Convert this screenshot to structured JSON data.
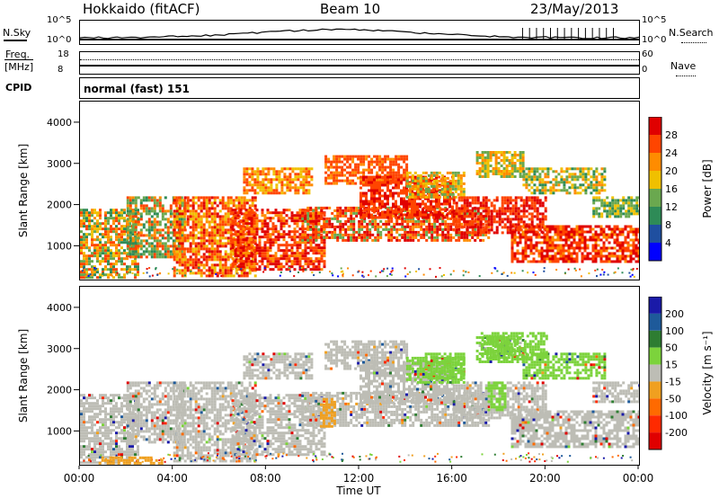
{
  "header": {
    "site": "Hokkaido (fitACF)",
    "beam": "Beam 10",
    "date": "23/May/2013"
  },
  "status_panels": {
    "nsky": {
      "label": "N.Sky",
      "tick_top": "10^5",
      "tick_bottom": "10^0"
    },
    "nsearch": {
      "label": "N.Search",
      "tick_top": "10^5",
      "tick_bottom": "10^0"
    },
    "freq": {
      "label_line1": "Freq.",
      "label_line2": "[MHz]",
      "tick_top": "18",
      "tick_bottom": "8"
    },
    "nave": {
      "label": "Nave",
      "tick_top": "60",
      "tick_bottom": "0"
    },
    "cpid": {
      "label": "CPID",
      "value": "normal (fast) 151"
    }
  },
  "colors": {
    "power": [
      "#0000ff",
      "#1f4fa0",
      "#2e8b57",
      "#6aa84f",
      "#f0c000",
      "#ff8c00",
      "#ff4500",
      "#e00000"
    ],
    "velocity": [
      "#1a1aa8",
      "#1e5a9a",
      "#2e7d32",
      "#7cd33c",
      "#bdbdb5",
      "#f0a020",
      "#ff6a00",
      "#ff2a00",
      "#e00000"
    ]
  },
  "chart_data": [
    {
      "type": "heatmap",
      "name": "power",
      "ylabel": "Slant Range [km]",
      "xlabel": "Time UT",
      "x_ticks": [
        "00:00",
        "04:00",
        "08:00",
        "12:00",
        "16:00",
        "20:00",
        "00:00"
      ],
      "y_ticks": [
        "1000",
        "2000",
        "3000",
        "4000"
      ],
      "ylim": [
        180,
        4500
      ],
      "xlim_hours": [
        0,
        24
      ],
      "colorbar": {
        "label": "Power [dB]",
        "ticks": [
          "4",
          "8",
          "12",
          "16",
          "20",
          "24",
          "28"
        ],
        "range": [
          0,
          32
        ]
      }
    },
    {
      "type": "heatmap",
      "name": "velocity",
      "ylabel": "Slant Range [km]",
      "xlabel": "Time UT",
      "x_ticks": [
        "00:00",
        "04:00",
        "08:00",
        "12:00",
        "16:00",
        "20:00",
        "00:00"
      ],
      "y_ticks": [
        "1000",
        "2000",
        "3000",
        "4000"
      ],
      "ylim": [
        180,
        4500
      ],
      "xlim_hours": [
        0,
        24
      ],
      "colorbar": {
        "label": "Velocity [m s⁻¹]",
        "ticks": [
          "200",
          "100",
          "50",
          "15",
          "-15",
          "-50",
          "-100",
          "-200"
        ]
      }
    }
  ],
  "x_axis_title": "Time UT"
}
